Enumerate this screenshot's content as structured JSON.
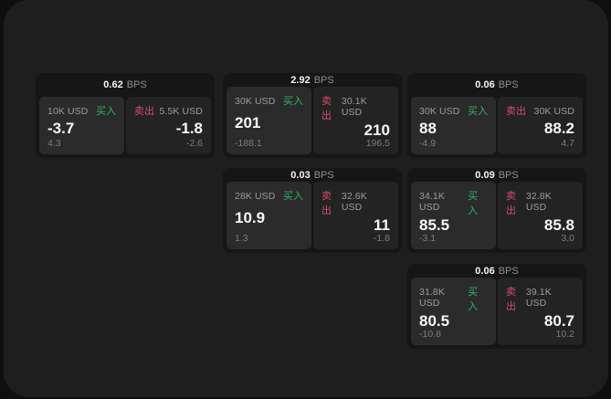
{
  "labels": {
    "bps_unit": "BPS",
    "buy": "买入",
    "sell": "卖出"
  },
  "colors": {
    "buy_green": "#30b368",
    "sell_red": "#d84a6a",
    "window_bg": "#1e1e1e",
    "card_bg": "#161616",
    "buy_panel_bg": "#2b2b2b",
    "sell_panel_bg": "#232323"
  },
  "cards": [
    {
      "bps": "0.62",
      "buy": {
        "notional": "10K USD",
        "price": "-3.7",
        "sub": "4.3"
      },
      "sell": {
        "notional": "5.5K USD",
        "price": "-1.8",
        "sub": "-2.6"
      }
    },
    {
      "bps": "2.92",
      "buy": {
        "notional": "30K USD",
        "price": "201",
        "sub": "-188.1"
      },
      "sell": {
        "notional": "30.1K USD",
        "price": "210",
        "sub": "196.5"
      }
    },
    {
      "bps": "0.06",
      "buy": {
        "notional": "30K USD",
        "price": "88",
        "sub": "-4.9"
      },
      "sell": {
        "notional": "30K USD",
        "price": "88.2",
        "sub": "4.7"
      }
    },
    {
      "bps": "0.03",
      "buy": {
        "notional": "28K USD",
        "price": "10.9",
        "sub": "1.3"
      },
      "sell": {
        "notional": "32.6K USD",
        "price": "11",
        "sub": "-1.8"
      }
    },
    {
      "bps": "0.09",
      "buy": {
        "notional": "34.1K USD",
        "price": "85.5",
        "sub": "-3.1"
      },
      "sell": {
        "notional": "32.8K USD",
        "price": "85.8",
        "sub": "3.0"
      }
    },
    {
      "bps": "0.06",
      "buy": {
        "notional": "31.8K USD",
        "price": "80.5",
        "sub": "-10.8"
      },
      "sell": {
        "notional": "39.1K USD",
        "price": "80.7",
        "sub": "10.2"
      }
    }
  ]
}
